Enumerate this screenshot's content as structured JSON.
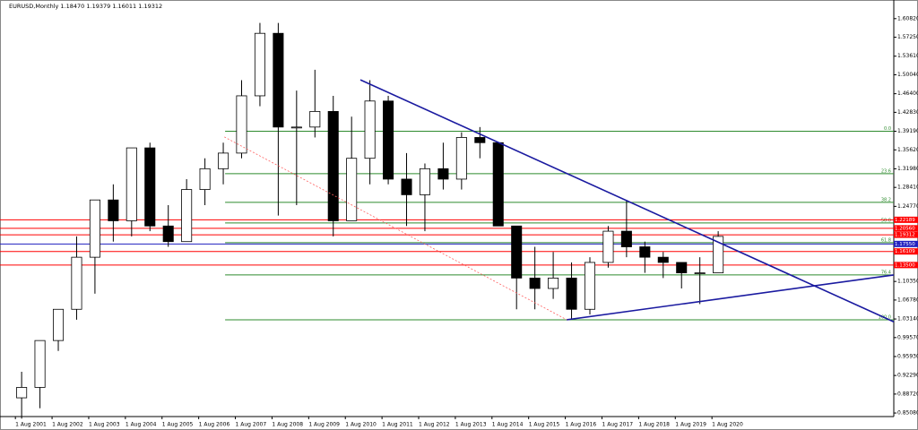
{
  "chart_data": {
    "type": "candlestick",
    "title": "EURUSD,Monthly  1.18470 1.19379 1.16011 1.19312",
    "x": [
      2001.5,
      2002,
      2002.5,
      2003,
      2003.5,
      2004,
      2004.5,
      2005,
      2005.5,
      2006,
      2006.5,
      2007,
      2007.5,
      2008,
      2008.5,
      2009,
      2009.5,
      2010,
      2010.5,
      2011,
      2011.5,
      2012,
      2012.5,
      2013,
      2013.5,
      2014,
      2014.5,
      2015,
      2015.5,
      2016,
      2016.5,
      2017,
      2017.5,
      2018,
      2018.5,
      2019,
      2019.5,
      2020,
      2020.5
    ],
    "open": [
      0.88,
      0.9,
      0.99,
      1.05,
      1.15,
      1.26,
      1.22,
      1.36,
      1.21,
      1.18,
      1.28,
      1.32,
      1.35,
      1.46,
      1.58,
      1.4,
      1.4,
      1.43,
      1.22,
      1.34,
      1.45,
      1.3,
      1.27,
      1.32,
      1.3,
      1.38,
      1.37,
      1.21,
      1.11,
      1.09,
      1.11,
      1.05,
      1.14,
      1.2,
      1.17,
      1.15,
      1.14,
      1.12,
      1.12
    ],
    "high": [
      0.93,
      0.99,
      1.05,
      1.19,
      1.26,
      1.29,
      1.36,
      1.37,
      1.25,
      1.3,
      1.34,
      1.37,
      1.49,
      1.6,
      1.6,
      1.47,
      1.51,
      1.46,
      1.42,
      1.49,
      1.46,
      1.35,
      1.33,
      1.37,
      1.39,
      1.4,
      1.37,
      1.21,
      1.17,
      1.16,
      1.14,
      1.15,
      1.21,
      1.26,
      1.18,
      1.16,
      1.14,
      1.15,
      1.2
    ],
    "low": [
      0.84,
      0.86,
      0.97,
      1.03,
      1.08,
      1.18,
      1.19,
      1.2,
      1.17,
      1.18,
      1.25,
      1.29,
      1.34,
      1.44,
      1.23,
      1.25,
      1.38,
      1.19,
      1.22,
      1.29,
      1.29,
      1.21,
      1.2,
      1.28,
      1.28,
      1.34,
      1.21,
      1.05,
      1.05,
      1.07,
      1.03,
      1.04,
      1.13,
      1.15,
      1.12,
      1.11,
      1.09,
      1.06,
      1.12
    ],
    "close": [
      0.9,
      0.99,
      1.05,
      1.15,
      1.26,
      1.22,
      1.36,
      1.21,
      1.18,
      1.28,
      1.32,
      1.35,
      1.46,
      1.58,
      1.4,
      1.4,
      1.43,
      1.22,
      1.34,
      1.45,
      1.3,
      1.27,
      1.32,
      1.3,
      1.38,
      1.37,
      1.21,
      1.11,
      1.09,
      1.11,
      1.05,
      1.14,
      1.2,
      1.17,
      1.15,
      1.14,
      1.12,
      1.12,
      1.19
    ],
    "xlim": [
      2001.16,
      2025.54
    ],
    "ylim": [
      0.844,
      1.644
    ],
    "xticks": [
      {
        "value": 2001.58,
        "label": "1 Aug 2001"
      },
      {
        "value": 2002.58,
        "label": "1 Aug 2002"
      },
      {
        "value": 2003.58,
        "label": "1 Aug 2003"
      },
      {
        "value": 2004.58,
        "label": "1 Aug 2004"
      },
      {
        "value": 2005.58,
        "label": "1 Aug 2005"
      },
      {
        "value": 2006.58,
        "label": "1 Aug 2006"
      },
      {
        "value": 2007.58,
        "label": "1 Aug 2007"
      },
      {
        "value": 2008.58,
        "label": "1 Aug 2008"
      },
      {
        "value": 2009.58,
        "label": "1 Aug 2009"
      },
      {
        "value": 2010.58,
        "label": "1 Aug 2010"
      },
      {
        "value": 2011.58,
        "label": "1 Aug 2011"
      },
      {
        "value": 2012.58,
        "label": "1 Aug 2012"
      },
      {
        "value": 2013.58,
        "label": "1 Aug 2013"
      },
      {
        "value": 2014.58,
        "label": "1 Aug 2014"
      },
      {
        "value": 2015.58,
        "label": "1 Aug 2015"
      },
      {
        "value": 2016.58,
        "label": "1 Aug 2016"
      },
      {
        "value": 2017.58,
        "label": "1 Aug 2017"
      },
      {
        "value": 2018.58,
        "label": "1 Aug 2018"
      },
      {
        "value": 2019.58,
        "label": "1 Aug 2019"
      },
      {
        "value": 2020.58,
        "label": "1 Aug 2020"
      }
    ],
    "yticks": [
      {
        "value": 1.6082,
        "label": "1.60820"
      },
      {
        "value": 1.5725,
        "label": "1.57250"
      },
      {
        "value": 1.5361,
        "label": "1.53610"
      },
      {
        "value": 1.5004,
        "label": "1.50040"
      },
      {
        "value": 1.464,
        "label": "1.46400"
      },
      {
        "value": 1.4283,
        "label": "1.42830"
      },
      {
        "value": 1.3919,
        "label": "1.39190"
      },
      {
        "value": 1.3562,
        "label": "1.35620"
      },
      {
        "value": 1.3198,
        "label": "1.31980"
      },
      {
        "value": 1.2841,
        "label": "1.28410"
      },
      {
        "value": 1.2477,
        "label": "1.24770"
      },
      {
        "value": 1.1035,
        "label": "1.10350"
      },
      {
        "value": 1.0678,
        "label": "1.06780"
      },
      {
        "value": 1.0314,
        "label": "1.03140"
      },
      {
        "value": 0.9957,
        "label": "0.99570"
      },
      {
        "value": 0.9593,
        "label": "0.95930"
      },
      {
        "value": 0.9229,
        "label": "0.92290"
      },
      {
        "value": 0.8872,
        "label": "0.88720"
      },
      {
        "value": 0.8508,
        "label": "0.85080"
      }
    ],
    "fib_levels": [
      {
        "value": 1.3919,
        "label": "0.0"
      },
      {
        "value": 1.3104,
        "label": "23.6"
      },
      {
        "value": 1.2554,
        "label": "38.2"
      },
      {
        "value": 1.2158,
        "label": "50.0"
      },
      {
        "value": 1.1779,
        "label": "61.8"
      },
      {
        "value": 1.116,
        "label": "76.4"
      },
      {
        "value": 1.0299,
        "label": "100.0"
      }
    ],
    "fib_start": 2007.3,
    "fib_color": "#2e8b2e",
    "price_lines": [
      {
        "value": 1.22189,
        "label": "1.22189",
        "color": "#ff0000"
      },
      {
        "value": 1.2056,
        "label": "1.20560",
        "color": "#ff0000"
      },
      {
        "value": 1.19312,
        "label": "1.19312",
        "color": "#ff0000"
      },
      {
        "value": 1.1755,
        "label": "1.17550",
        "color": "#2020c0"
      },
      {
        "value": 1.16109,
        "label": "1.16109",
        "color": "#ff0000"
      },
      {
        "value": 1.135,
        "label": "1.13500",
        "color": "#ff0000"
      }
    ],
    "trendlines": [
      {
        "x": [
          2010.99,
          2025.54
        ],
        "y": [
          1.4907,
          1.0259
        ],
        "color": "#1a1aa0"
      },
      {
        "x": [
          2016.62,
          2025.54
        ],
        "y": [
          1.0299,
          1.116
        ],
        "color": "#1a1aa0"
      },
      {
        "x": [
          2007.28,
          2016.62
        ],
        "y": [
          1.381,
          1.0299
        ],
        "color": "#ff6060",
        "dashed": true
      }
    ],
    "bull_color": "#ffffff",
    "bear_color": "#000000"
  }
}
